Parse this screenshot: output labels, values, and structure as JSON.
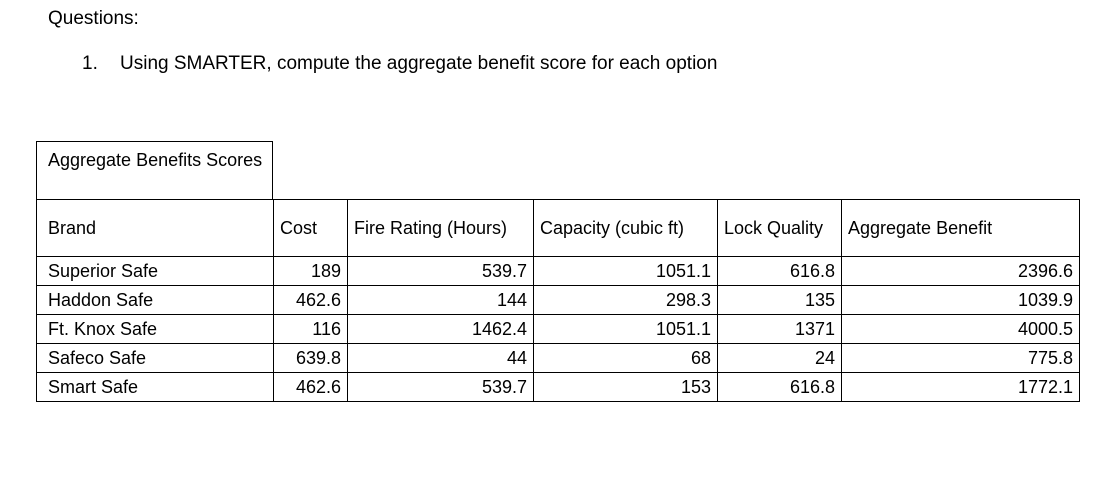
{
  "heading": "Questions:",
  "question": {
    "number": "1.",
    "text": "Using SMARTER, compute the aggregate benefit score for each option"
  },
  "table": {
    "caption": "Aggregate Benefits Scores",
    "headers": [
      "Brand",
      "Cost",
      "Fire Rating (Hours)",
      "Capacity (cubic ft)",
      "Lock Quality",
      "Aggregate Benefit"
    ],
    "rows": [
      [
        "Superior Safe",
        "189",
        "539.7",
        "1051.1",
        "616.8",
        "2396.6"
      ],
      [
        "Haddon Safe",
        "462.6",
        "144",
        "298.3",
        "135",
        "1039.9"
      ],
      [
        "Ft. Knox Safe",
        "116",
        "1462.4",
        "1051.1",
        "1371",
        "4000.5"
      ],
      [
        "Safeco Safe",
        "639.8",
        "44",
        "68",
        "24",
        "775.8"
      ],
      [
        "Smart Safe",
        "462.6",
        "539.7",
        "153",
        "616.8",
        "1772.1"
      ]
    ]
  }
}
